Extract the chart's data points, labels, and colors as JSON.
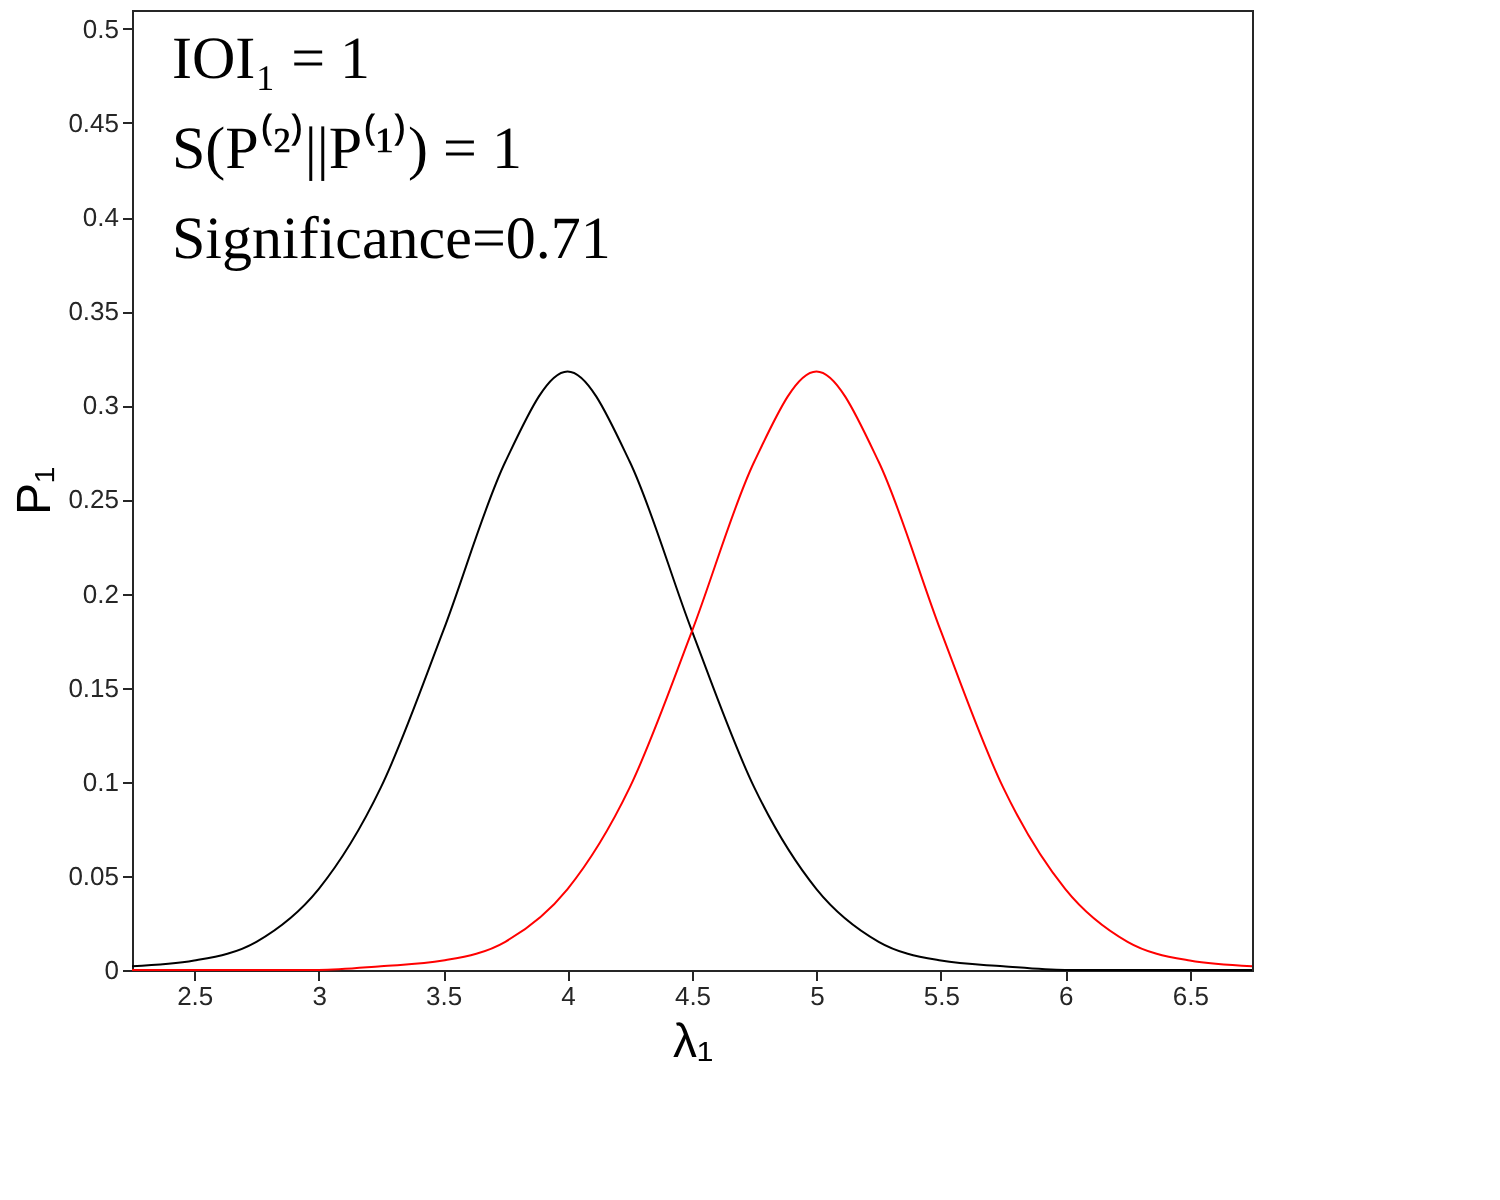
{
  "chart_data": {
    "type": "line",
    "xlabel": "λ₁",
    "ylabel": "P₁",
    "annotations": [
      "IOI₁ = 1",
      "S(P⁽²⁾||P⁽¹⁾) = 1",
      "Significance=0.71"
    ],
    "xlim": [
      2.25,
      6.75
    ],
    "xticks": [
      2.5,
      3,
      3.5,
      4,
      4.5,
      5,
      5.5,
      6,
      6.5
    ],
    "ylim": [
      0,
      0.51
    ],
    "yticks": [
      0,
      0.05,
      0.1,
      0.15,
      0.2,
      0.25,
      0.3,
      0.35,
      0.4,
      0.45,
      0.5
    ],
    "grid": false,
    "legend": false,
    "line_style": "solid",
    "marker": "none",
    "series": [
      {
        "color": "#000000",
        "x": [
          2.25,
          2.5,
          2.75,
          3,
          3.25,
          3.5,
          3.75,
          4,
          4.25,
          4.5,
          4.75,
          5,
          5.25,
          5.5,
          5.75,
          6,
          6.25,
          6.5,
          6.75
        ],
        "values": [
          0.002,
          0.005,
          0.015,
          0.043,
          0.097,
          0.18,
          0.27,
          0.318,
          0.27,
          0.18,
          0.097,
          0.043,
          0.015,
          0.005,
          0.002,
          0,
          0,
          0,
          0
        ]
      },
      {
        "color": "#ff0000",
        "x": [
          2.25,
          2.5,
          2.75,
          3,
          3.25,
          3.5,
          3.75,
          4,
          4.25,
          4.5,
          4.75,
          5,
          5.25,
          5.5,
          5.75,
          6,
          6.25,
          6.5,
          6.75
        ],
        "values": [
          0,
          0,
          0,
          0,
          0.002,
          0.005,
          0.015,
          0.043,
          0.097,
          0.18,
          0.27,
          0.318,
          0.27,
          0.18,
          0.097,
          0.043,
          0.015,
          0.005,
          0.002
        ]
      }
    ]
  }
}
